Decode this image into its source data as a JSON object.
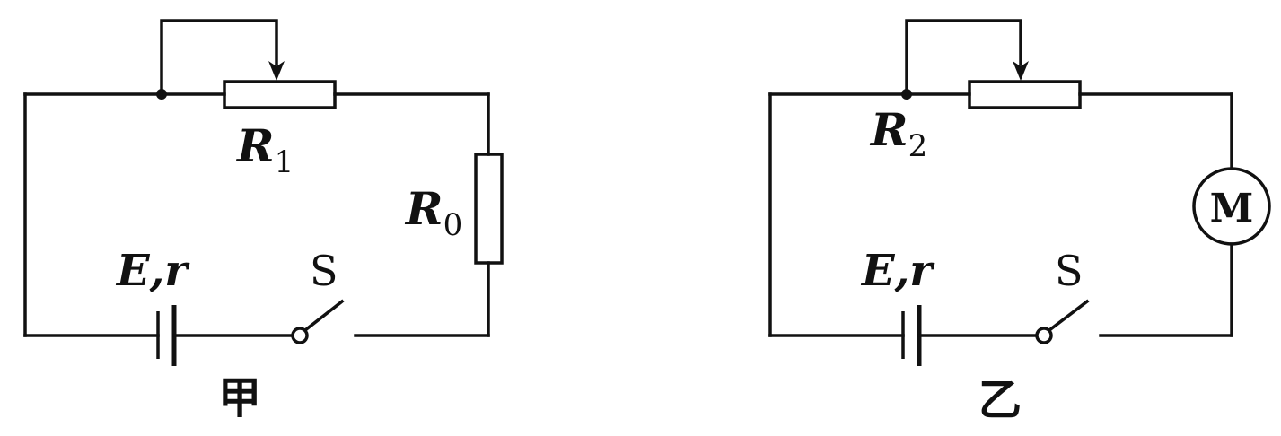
{
  "circuits": [
    {
      "caption": "甲",
      "rheostat": {
        "symbol": "R",
        "subscript": "1"
      },
      "resistor": {
        "symbol": "R",
        "subscript": "0"
      },
      "source": {
        "label": "E,r"
      },
      "switch": {
        "label": "S"
      }
    },
    {
      "caption": "乙",
      "rheostat": {
        "symbol": "R",
        "subscript": "2"
      },
      "motor": {
        "label": "M"
      },
      "source": {
        "label": "E,r"
      },
      "switch": {
        "label": "S"
      }
    }
  ],
  "colors": {
    "line": "#111111",
    "background": "#ffffff"
  }
}
